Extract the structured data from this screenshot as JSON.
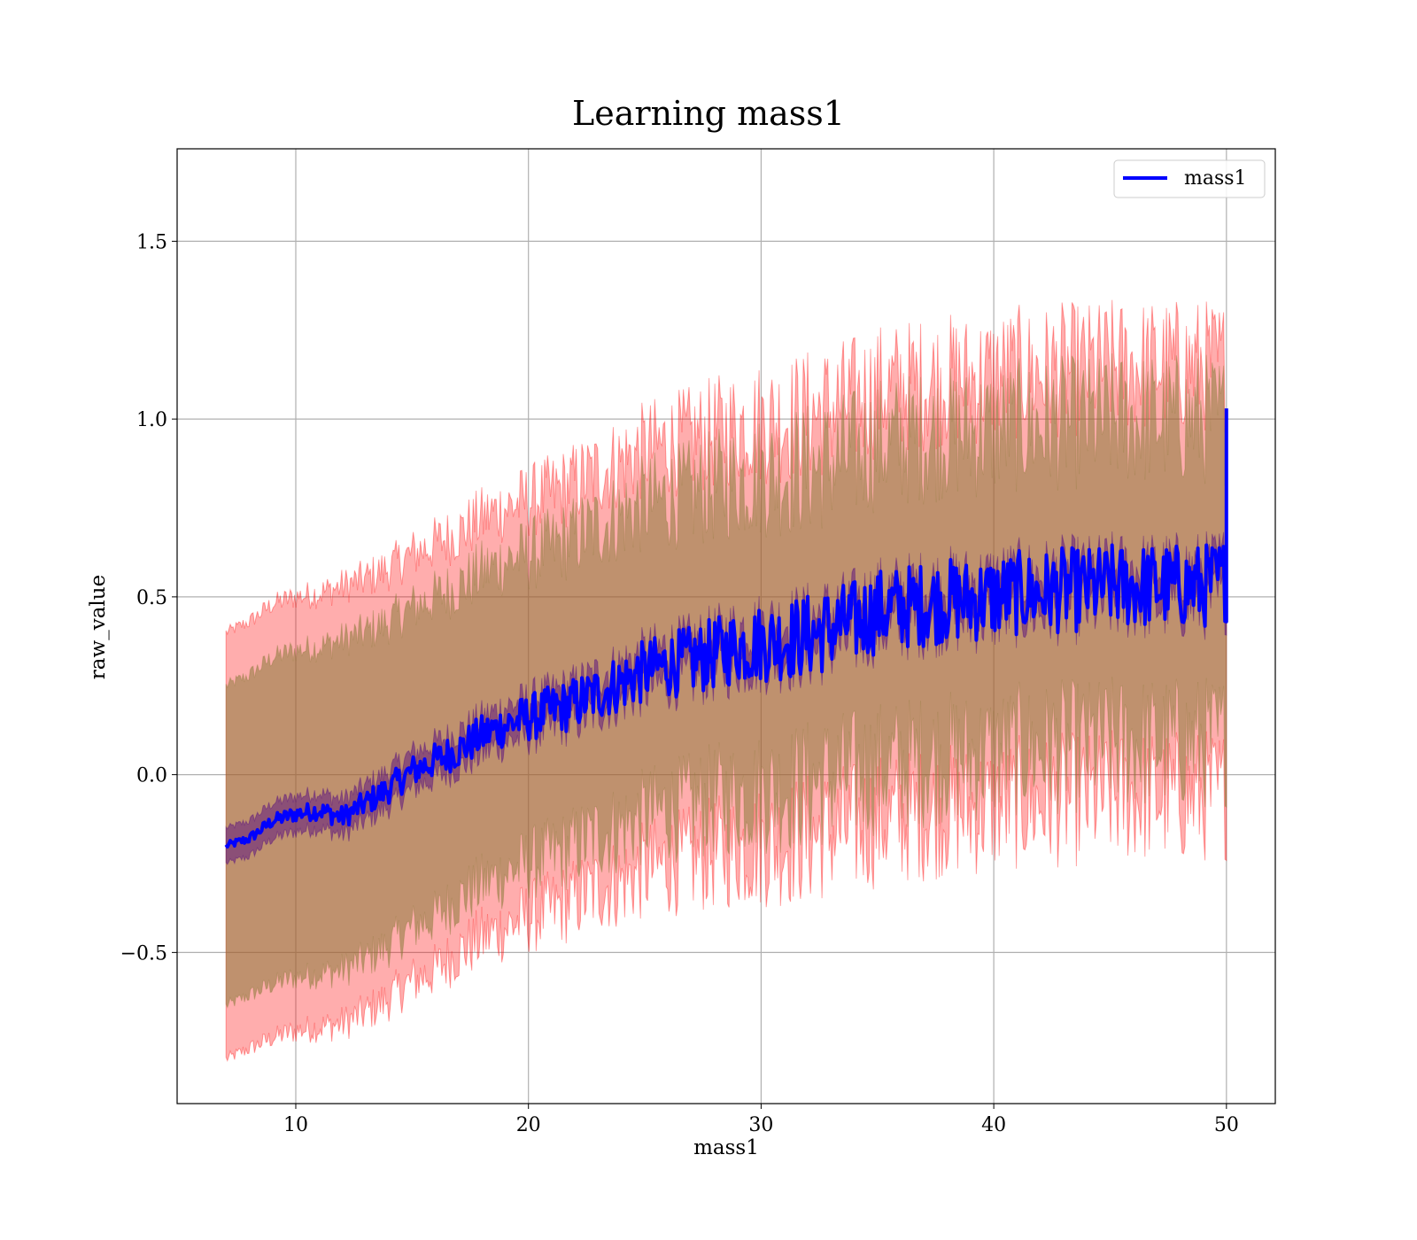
{
  "chart_data": {
    "type": "line",
    "title": "Learning mass1",
    "xlabel": "mass1",
    "ylabel": "raw_value",
    "xlim": [
      4.9,
      52.1
    ],
    "ylim": [
      -0.925,
      1.76
    ],
    "xticks": [
      10,
      20,
      30,
      40,
      50
    ],
    "xtick_labels": [
      "10",
      "20",
      "30",
      "40",
      "50"
    ],
    "yticks": [
      -0.5,
      0.0,
      0.5,
      1.0,
      1.5
    ],
    "ytick_labels": [
      "−0.5",
      "0.0",
      "0.5",
      "1.0",
      "1.5"
    ],
    "grid": true,
    "legend": {
      "position": "top-right",
      "entries": [
        "mass1"
      ]
    },
    "colors": {
      "line": "#0000ff",
      "outer_band": "#ff0000",
      "middle_band": "#8b7a3a",
      "inner_band": "#4b0082"
    },
    "series": [
      {
        "name": "mass1",
        "x": [
          7,
          8,
          9,
          10,
          11,
          12,
          13,
          14,
          15,
          16,
          17,
          18,
          19,
          20,
          21,
          22,
          23,
          24,
          25,
          26,
          27,
          28,
          29,
          30,
          31,
          32,
          33,
          34,
          35,
          36,
          37,
          38,
          39,
          40,
          41,
          42,
          43,
          44,
          45,
          46,
          47,
          48,
          49,
          50
        ],
        "y": [
          -0.2,
          -0.18,
          -0.13,
          -0.11,
          -0.1,
          -0.12,
          -0.08,
          -0.04,
          0.01,
          0.04,
          0.07,
          0.11,
          0.14,
          0.16,
          0.18,
          0.2,
          0.23,
          0.26,
          0.29,
          0.31,
          0.32,
          0.34,
          0.36,
          0.37,
          0.38,
          0.39,
          0.41,
          0.43,
          0.46,
          0.47,
          0.48,
          0.49,
          0.49,
          0.5,
          0.51,
          0.51,
          0.52,
          0.52,
          0.53,
          0.53,
          0.53,
          0.53,
          0.53,
          0.55
        ]
      }
    ],
    "bands": [
      {
        "x": [
          7,
          8,
          9,
          10,
          11,
          12,
          13,
          14,
          15,
          16,
          17,
          18,
          19,
          20,
          21,
          22,
          23,
          24,
          25,
          26,
          27,
          28,
          29,
          30,
          31,
          32,
          33,
          34,
          35,
          36,
          37,
          38,
          39,
          40,
          41,
          42,
          43,
          44,
          45,
          46,
          47,
          48,
          49,
          50
        ],
        "lower": [
          -0.8,
          -0.77,
          -0.74,
          -0.72,
          -0.71,
          -0.7,
          -0.67,
          -0.63,
          -0.58,
          -0.55,
          -0.5,
          -0.46,
          -0.43,
          -0.4,
          -0.38,
          -0.35,
          -0.32,
          -0.3,
          -0.27,
          -0.25,
          -0.24,
          -0.22,
          -0.21,
          -0.2,
          -0.19,
          -0.18,
          -0.16,
          -0.15,
          -0.13,
          -0.12,
          -0.11,
          -0.1,
          -0.1,
          -0.09,
          -0.08,
          -0.08,
          -0.07,
          -0.07,
          -0.06,
          -0.06,
          -0.06,
          -0.06,
          -0.06,
          -0.05
        ],
        "upper": [
          0.4,
          0.43,
          0.48,
          0.5,
          0.51,
          0.53,
          0.55,
          0.58,
          0.62,
          0.65,
          0.68,
          0.72,
          0.75,
          0.77,
          0.79,
          0.82,
          0.85,
          0.88,
          0.91,
          0.93,
          0.94,
          0.96,
          0.98,
          0.99,
          1.0,
          1.01,
          1.03,
          1.05,
          1.08,
          1.09,
          1.1,
          1.11,
          1.11,
          1.12,
          1.13,
          1.13,
          1.14,
          1.14,
          1.15,
          1.15,
          1.15,
          1.15,
          1.15,
          1.15
        ]
      },
      {
        "x": [
          7,
          8,
          9,
          10,
          11,
          12,
          13,
          14,
          15,
          16,
          17,
          18,
          19,
          20,
          21,
          22,
          23,
          24,
          25,
          26,
          27,
          28,
          29,
          30,
          31,
          32,
          33,
          34,
          35,
          36,
          37,
          38,
          39,
          40,
          41,
          42,
          43,
          44,
          45,
          46,
          47,
          48,
          49,
          50
        ],
        "lower": [
          -0.65,
          -0.62,
          -0.59,
          -0.57,
          -0.56,
          -0.55,
          -0.52,
          -0.48,
          -0.43,
          -0.4,
          -0.35,
          -0.31,
          -0.28,
          -0.25,
          -0.23,
          -0.2,
          -0.17,
          -0.15,
          -0.12,
          -0.1,
          -0.09,
          -0.07,
          -0.06,
          -0.05,
          -0.04,
          -0.03,
          -0.01,
          0.0,
          0.02,
          0.03,
          0.04,
          0.05,
          0.05,
          0.06,
          0.07,
          0.07,
          0.08,
          0.08,
          0.09,
          0.09,
          0.09,
          0.09,
          0.09,
          0.1
        ],
        "upper": [
          0.25,
          0.28,
          0.33,
          0.35,
          0.36,
          0.38,
          0.4,
          0.43,
          0.47,
          0.5,
          0.53,
          0.57,
          0.6,
          0.62,
          0.64,
          0.67,
          0.7,
          0.73,
          0.76,
          0.78,
          0.79,
          0.81,
          0.83,
          0.84,
          0.85,
          0.86,
          0.88,
          0.9,
          0.93,
          0.94,
          0.95,
          0.96,
          0.96,
          0.97,
          0.98,
          0.98,
          0.99,
          0.99,
          1.0,
          1.0,
          1.0,
          1.0,
          1.0,
          1.0
        ]
      },
      {
        "x": [
          7,
          8,
          9,
          10,
          11,
          12,
          13,
          14,
          15,
          16,
          17,
          18,
          19,
          20,
          21,
          22,
          23,
          24,
          25,
          26,
          27,
          28,
          29,
          30,
          31,
          32,
          33,
          34,
          35,
          36,
          37,
          38,
          39,
          40,
          41,
          42,
          43,
          44,
          45,
          46,
          47,
          48,
          49,
          50
        ],
        "lower": [
          -0.25,
          -0.23,
          -0.18,
          -0.16,
          -0.15,
          -0.17,
          -0.13,
          -0.09,
          -0.04,
          -0.01,
          0.02,
          0.06,
          0.09,
          0.11,
          0.13,
          0.15,
          0.18,
          0.21,
          0.24,
          0.26,
          0.27,
          0.29,
          0.31,
          0.32,
          0.33,
          0.34,
          0.36,
          0.38,
          0.41,
          0.42,
          0.43,
          0.44,
          0.44,
          0.45,
          0.46,
          0.46,
          0.47,
          0.47,
          0.48,
          0.48,
          0.48,
          0.48,
          0.48,
          0.5
        ],
        "upper": [
          -0.15,
          -0.13,
          -0.08,
          -0.06,
          -0.05,
          -0.07,
          -0.03,
          0.01,
          0.06,
          0.09,
          0.12,
          0.16,
          0.19,
          0.21,
          0.23,
          0.25,
          0.28,
          0.31,
          0.34,
          0.36,
          0.37,
          0.39,
          0.41,
          0.42,
          0.43,
          0.44,
          0.46,
          0.48,
          0.51,
          0.52,
          0.53,
          0.54,
          0.54,
          0.55,
          0.56,
          0.56,
          0.57,
          0.57,
          0.58,
          0.58,
          0.58,
          0.58,
          0.58,
          0.6
        ]
      }
    ]
  }
}
